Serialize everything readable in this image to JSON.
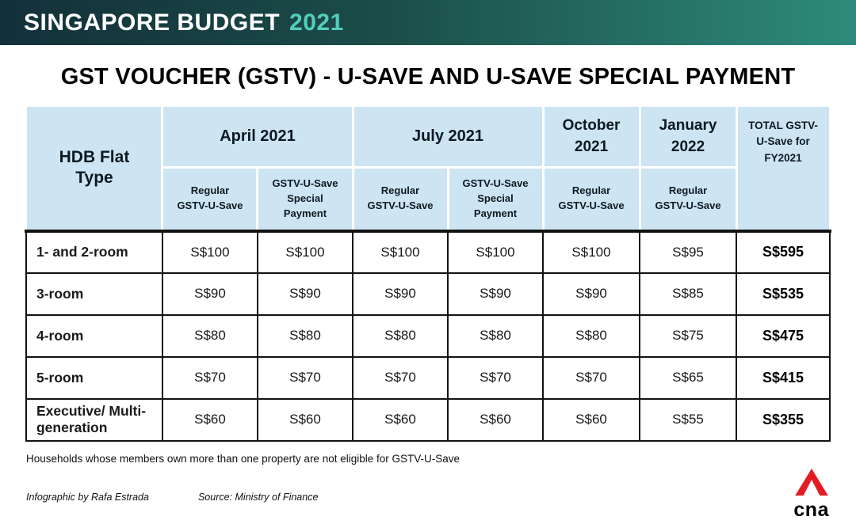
{
  "banner": {
    "title": "SINGAPORE BUDGET",
    "year": "2021"
  },
  "page_title": "GST VOUCHER (GSTV) - U-SAVE AND U-SAVE SPECIAL PAYMENT",
  "table": {
    "flat_type_header": "HDB Flat Type",
    "groups": [
      {
        "label": "April 2021"
      },
      {
        "label": "July 2021"
      },
      {
        "label": "October\n2021"
      },
      {
        "label": "January\n2022"
      }
    ],
    "sub_headers": [
      "Regular GSTV-U-Save",
      "GSTV-U-Save Special Payment",
      "Regular GSTV-U-Save",
      "GSTV-U-Save Special Payment",
      "Regular GSTV-U-Save",
      "Regular GSTV-U-Save"
    ],
    "total_header": "TOTAL GSTV-U-Save for FY2021"
  },
  "chart_data": {
    "type": "table",
    "title": "GST VOUCHER (GSTV) - U-SAVE AND U-SAVE SPECIAL PAYMENT",
    "columns": [
      "HDB Flat Type",
      "April 2021 - Regular GSTV-U-Save",
      "April 2021 - GSTV-U-Save Special Payment",
      "July 2021 - Regular GSTV-U-Save",
      "July 2021 - GSTV-U-Save Special Payment",
      "October 2021 - Regular GSTV-U-Save",
      "January 2022 - Regular GSTV-U-Save",
      "TOTAL GSTV-U-Save for FY2021"
    ],
    "rows": [
      [
        "1- and 2-room",
        "S$100",
        "S$100",
        "S$100",
        "S$100",
        "S$100",
        "S$95",
        "S$595"
      ],
      [
        "3-room",
        "S$90",
        "S$90",
        "S$90",
        "S$90",
        "S$90",
        "S$85",
        "S$535"
      ],
      [
        "4-room",
        "S$80",
        "S$80",
        "S$80",
        "S$80",
        "S$80",
        "S$75",
        "S$475"
      ],
      [
        "5-room",
        "S$70",
        "S$70",
        "S$70",
        "S$70",
        "S$70",
        "S$65",
        "S$415"
      ],
      [
        "Executive/ Multi-generation",
        "S$60",
        "S$60",
        "S$60",
        "S$60",
        "S$60",
        "S$55",
        "S$355"
      ]
    ]
  },
  "footnote": "Households whose members own more than one property are not eligible for GSTV-U-Save",
  "credits": {
    "author": "Infographic by Rafa Estrada",
    "source": "Source: Ministry of Finance"
  },
  "logo": {
    "text": "cna"
  },
  "colors": {
    "banner_gradient_start": "#13303a",
    "banner_gradient_end": "#2e8b7b",
    "banner_year_accent": "#54cdbb",
    "header_cell_bg": "#cde5f3",
    "logo_red": "#e31b23"
  }
}
